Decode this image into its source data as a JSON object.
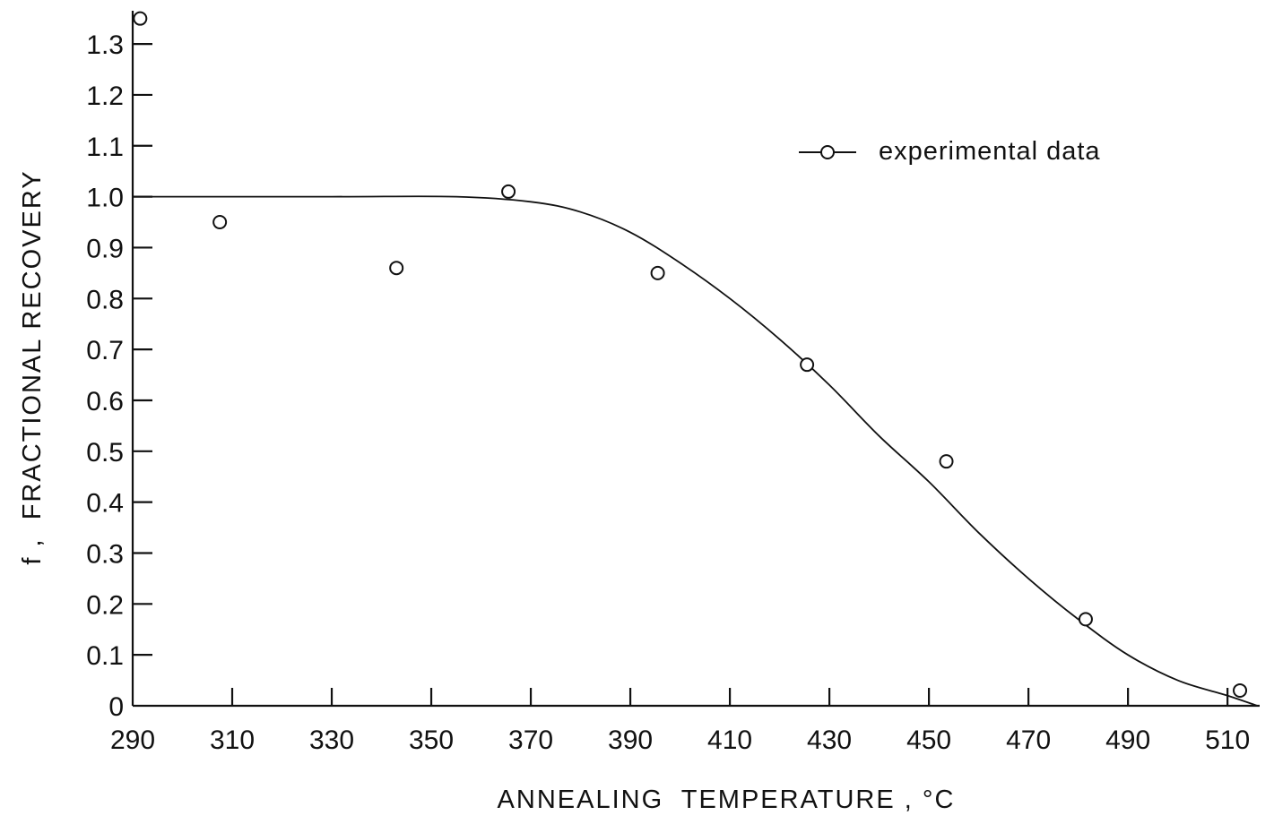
{
  "chart_data": {
    "type": "scatter",
    "xlabel": "ANNEALING  TEMPERATURE , °C",
    "ylabel": "f ,  FRACTIONAL RECOVERY",
    "xlim": [
      290,
      517
    ],
    "ylim": [
      0,
      1.36
    ],
    "x_ticks": [
      290,
      310,
      330,
      350,
      370,
      390,
      410,
      430,
      450,
      470,
      490,
      510
    ],
    "x_tick_labels": [
      "290",
      "310",
      "330",
      "350",
      "370",
      "390",
      "410",
      "430",
      "450",
      "470",
      "490",
      "510"
    ],
    "y_ticks": [
      0,
      0.1,
      0.2,
      0.3,
      0.4,
      0.5,
      0.6,
      0.7,
      0.8,
      0.9,
      1.0,
      1.1,
      1.2,
      1.3
    ],
    "y_tick_labels": [
      "0",
      "0.1",
      "0.2",
      "0.3",
      "0.4",
      "0.5",
      "0.6",
      "0.7",
      "0.8",
      "0.9",
      "1.0",
      "1.1",
      "1.2",
      "1.3"
    ],
    "grid": false,
    "legend_position": "top-right",
    "series": [
      {
        "name": "experimental data",
        "kind": "scatter",
        "marker": "open-circle",
        "points": [
          {
            "x": 291.5,
            "y": 1.35
          },
          {
            "x": 307.5,
            "y": 0.95
          },
          {
            "x": 343,
            "y": 0.86
          },
          {
            "x": 365.5,
            "y": 1.01
          },
          {
            "x": 395.5,
            "y": 0.85
          },
          {
            "x": 425.5,
            "y": 0.67
          },
          {
            "x": 453.5,
            "y": 0.48
          },
          {
            "x": 481.5,
            "y": 0.17
          },
          {
            "x": 512.5,
            "y": 0.03
          }
        ]
      },
      {
        "kind": "line",
        "points": [
          {
            "x": 290,
            "y": 1.0
          },
          {
            "x": 330,
            "y": 1.0
          },
          {
            "x": 355,
            "y": 1.0
          },
          {
            "x": 370,
            "y": 0.99
          },
          {
            "x": 380,
            "y": 0.97
          },
          {
            "x": 390,
            "y": 0.93
          },
          {
            "x": 400,
            "y": 0.87
          },
          {
            "x": 410,
            "y": 0.8
          },
          {
            "x": 420,
            "y": 0.72
          },
          {
            "x": 430,
            "y": 0.63
          },
          {
            "x": 440,
            "y": 0.53
          },
          {
            "x": 450,
            "y": 0.44
          },
          {
            "x": 460,
            "y": 0.34
          },
          {
            "x": 470,
            "y": 0.25
          },
          {
            "x": 480,
            "y": 0.17
          },
          {
            "x": 490,
            "y": 0.1
          },
          {
            "x": 500,
            "y": 0.05
          },
          {
            "x": 510,
            "y": 0.02
          },
          {
            "x": 516,
            "y": 0.0
          }
        ]
      }
    ]
  }
}
